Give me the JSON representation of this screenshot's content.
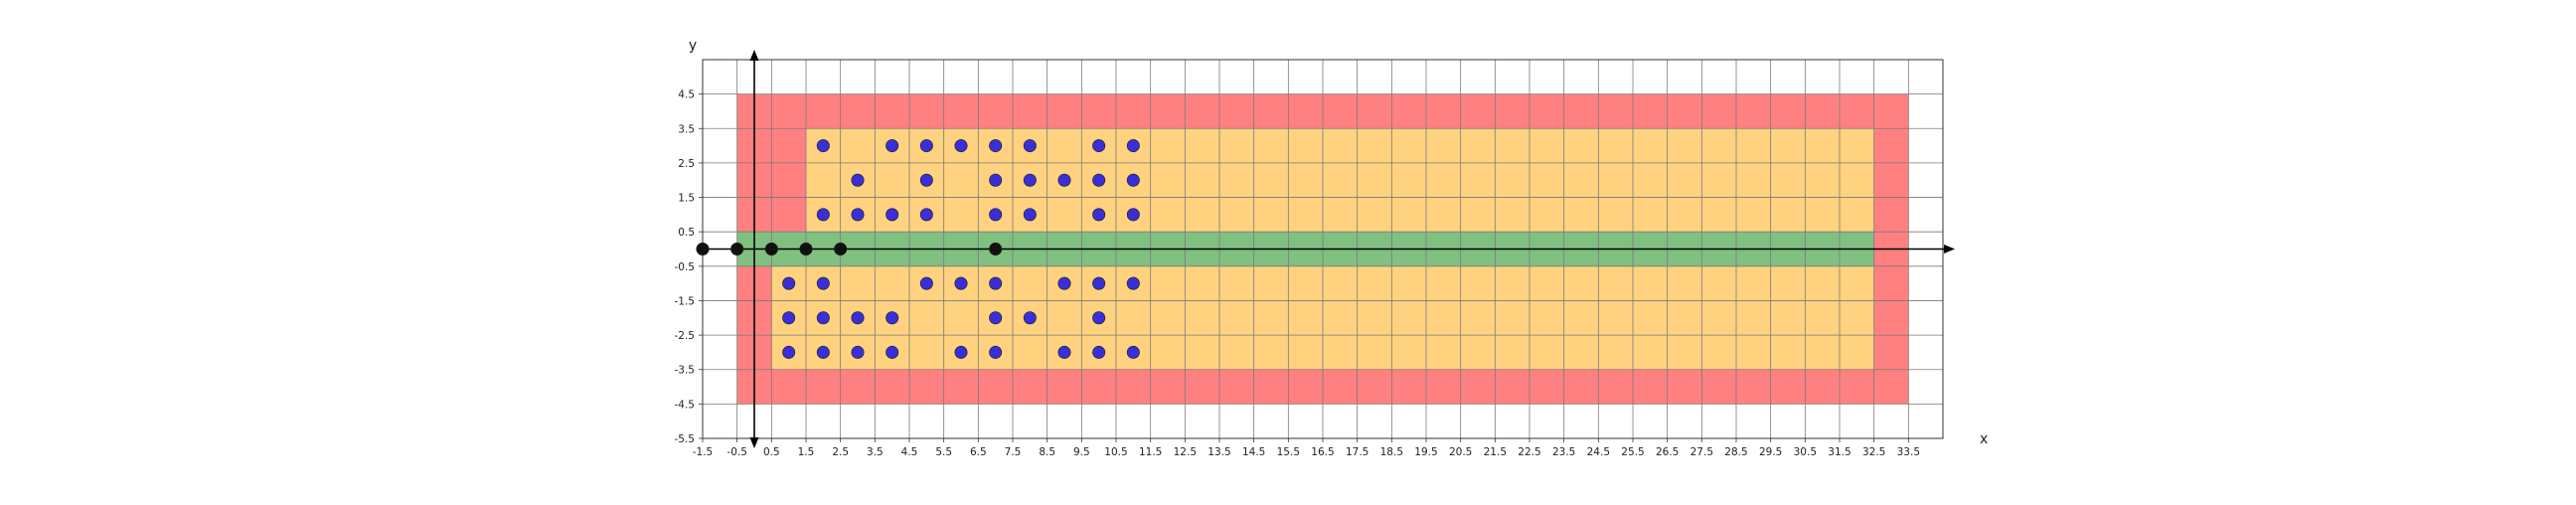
{
  "chart_data": {
    "type": "scatter",
    "title": "",
    "xlabel": "x",
    "ylabel": "y",
    "xlim": [
      -1.5,
      34.5
    ],
    "ylim": [
      -5.5,
      5.5
    ],
    "grid": true,
    "x_ticks": [
      -1.5,
      -0.5,
      0.5,
      1.5,
      2.5,
      3.5,
      4.5,
      5.5,
      6.5,
      7.5,
      8.5,
      9.5,
      10.5,
      11.5,
      12.5,
      13.5,
      14.5,
      15.5,
      16.5,
      17.5,
      18.5,
      19.5,
      20.5,
      21.5,
      22.5,
      23.5,
      24.5,
      25.5,
      26.5,
      27.5,
      28.5,
      29.5,
      30.5,
      31.5,
      32.5,
      33.5
    ],
    "x_tick_labels": [
      "-1.5",
      "-0.5",
      "0.5",
      "1.5",
      "2.5",
      "3.5",
      "4.5",
      "5.5",
      "6.5",
      "7.5",
      "8.5",
      "9.5",
      "10.5",
      "11.5",
      "12.5",
      "13.5",
      "14.5",
      "15.5",
      "16.5",
      "17.5",
      "18.5",
      "19.5",
      "20.5",
      "21.5",
      "22.5",
      "23.5",
      "24.5",
      "25.5",
      "26.5",
      "27.5",
      "28.5",
      "29.5",
      "30.5",
      "31.5",
      "32.5",
      "33.5"
    ],
    "y_ticks": [
      -5.5,
      -4.5,
      -3.5,
      -2.5,
      -1.5,
      -0.5,
      0.5,
      1.5,
      2.5,
      3.5,
      4.5
    ],
    "y_tick_labels": [
      "-5.5",
      "-4.5",
      "-3.5",
      "-2.5",
      "-1.5",
      "-0.5",
      "0.5",
      "1.5",
      "2.5",
      "3.5",
      "4.5"
    ],
    "regions": [
      {
        "color": "#ff8080",
        "x": [
          -0.5,
          33.5
        ],
        "y": [
          -4.5,
          4.5
        ]
      },
      {
        "color": "#ffd280",
        "x": [
          1.5,
          32.5
        ],
        "y": [
          0.5,
          3.5
        ]
      },
      {
        "color": "#ffd280",
        "x": [
          0.5,
          32.5
        ],
        "y": [
          -3.5,
          -0.5
        ]
      },
      {
        "color": "#80c080",
        "x": [
          -0.5,
          32.5
        ],
        "y": [
          -0.5,
          0.5
        ]
      }
    ],
    "series": [
      {
        "color": "#3a2fd6",
        "points": [
          [
            2,
            3
          ],
          [
            4,
            3
          ],
          [
            5,
            3
          ],
          [
            6,
            3
          ],
          [
            7,
            3
          ],
          [
            8,
            3
          ],
          [
            10,
            3
          ],
          [
            11,
            3
          ],
          [
            3,
            2
          ],
          [
            5,
            2
          ],
          [
            7,
            2
          ],
          [
            8,
            2
          ],
          [
            9,
            2
          ],
          [
            10,
            2
          ],
          [
            11,
            2
          ],
          [
            2,
            1
          ],
          [
            3,
            1
          ],
          [
            4,
            1
          ],
          [
            5,
            1
          ],
          [
            7,
            1
          ],
          [
            8,
            1
          ],
          [
            10,
            1
          ],
          [
            11,
            1
          ],
          [
            1,
            -1
          ],
          [
            2,
            -1
          ],
          [
            5,
            -1
          ],
          [
            6,
            -1
          ],
          [
            7,
            -1
          ],
          [
            9,
            -1
          ],
          [
            10,
            -1
          ],
          [
            11,
            -1
          ],
          [
            1,
            -2
          ],
          [
            2,
            -2
          ],
          [
            3,
            -2
          ],
          [
            4,
            -2
          ],
          [
            7,
            -2
          ],
          [
            8,
            -2
          ],
          [
            10,
            -2
          ],
          [
            1,
            -3
          ],
          [
            2,
            -3
          ],
          [
            3,
            -3
          ],
          [
            4,
            -3
          ],
          [
            6,
            -3
          ],
          [
            7,
            -3
          ],
          [
            9,
            -3
          ],
          [
            10,
            -3
          ],
          [
            11,
            -3
          ]
        ]
      },
      {
        "color": "#111111",
        "points": [
          [
            -1.5,
            0
          ],
          [
            -0.5,
            0
          ],
          [
            0.5,
            0
          ],
          [
            1.5,
            0
          ],
          [
            2.5,
            0
          ],
          [
            7,
            0
          ]
        ]
      }
    ]
  }
}
